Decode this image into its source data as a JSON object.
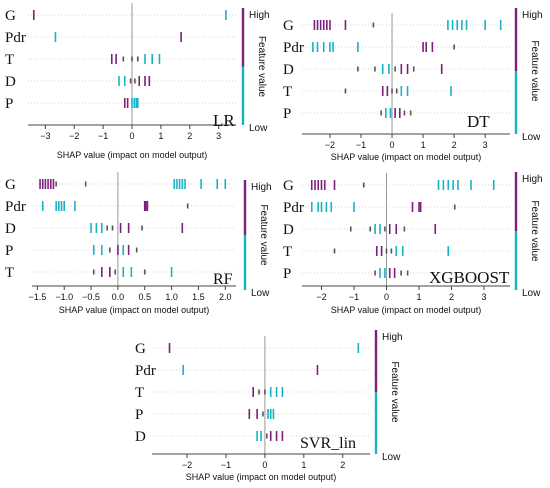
{
  "colors": {
    "high": "#7b1f7a",
    "low": "#17b3c5",
    "mid": "#555555",
    "axis": "#444444",
    "zero_line": "#999999",
    "grid": "#c9c9c9"
  },
  "shared": {
    "xlabel": "SHAP value (impact on model output)",
    "cbar_high": "High",
    "cbar_low": "Low",
    "cbar_label": "Feature value"
  },
  "chart_data": [
    {
      "type": "scatter",
      "title": "LR",
      "features": [
        "G",
        "Pdr",
        "T",
        "D",
        "P"
      ],
      "xlim": [
        -3.6,
        3.6
      ],
      "ticks": [
        -3,
        -2,
        -1,
        0,
        1,
        2,
        3
      ],
      "tick_labels": [
        "−3",
        "−2",
        "−1",
        "0",
        "1",
        "2",
        "3"
      ],
      "points": [
        {
          "f": "G",
          "x": -3.4,
          "c": "high"
        },
        {
          "f": "G",
          "x": 3.25,
          "c": "low"
        },
        {
          "f": "Pdr",
          "x": -2.65,
          "c": "low"
        },
        {
          "f": "Pdr",
          "x": 1.7,
          "c": "high"
        },
        {
          "f": "T",
          "x": -0.7,
          "c": "high"
        },
        {
          "f": "T",
          "x": -0.55,
          "c": "high"
        },
        {
          "f": "T",
          "x": -0.3,
          "c": "mid"
        },
        {
          "f": "T",
          "x": 0.0,
          "c": "mid"
        },
        {
          "f": "T",
          "x": 0.2,
          "c": "mid"
        },
        {
          "f": "T",
          "x": 0.45,
          "c": "low"
        },
        {
          "f": "T",
          "x": 0.7,
          "c": "low"
        },
        {
          "f": "T",
          "x": 0.95,
          "c": "low"
        },
        {
          "f": "D",
          "x": -0.45,
          "c": "low"
        },
        {
          "f": "D",
          "x": -0.25,
          "c": "low"
        },
        {
          "f": "D",
          "x": -0.05,
          "c": "mid"
        },
        {
          "f": "D",
          "x": 0.1,
          "c": "mid"
        },
        {
          "f": "D",
          "x": 0.25,
          "c": "high"
        },
        {
          "f": "D",
          "x": 0.45,
          "c": "high"
        },
        {
          "f": "D",
          "x": 0.6,
          "c": "high"
        },
        {
          "f": "P",
          "x": -0.25,
          "c": "high"
        },
        {
          "f": "P",
          "x": -0.15,
          "c": "high"
        },
        {
          "f": "P",
          "x": 0.0,
          "c": "low"
        },
        {
          "f": "P",
          "x": 0.08,
          "c": "low"
        },
        {
          "f": "P",
          "x": 0.15,
          "c": "low"
        },
        {
          "f": "P",
          "x": 0.2,
          "c": "low"
        }
      ]
    },
    {
      "type": "scatter",
      "title": "DT",
      "features": [
        "G",
        "Pdr",
        "D",
        "T",
        "P"
      ],
      "xlim": [
        -2.9,
        3.8
      ],
      "ticks": [
        -2,
        -1,
        0,
        1,
        2,
        3
      ],
      "tick_labels": [
        "−2",
        "−1",
        "0",
        "1",
        "2",
        "3"
      ],
      "points": [
        {
          "f": "G",
          "x": -2.5,
          "c": "high"
        },
        {
          "f": "G",
          "x": -2.4,
          "c": "high"
        },
        {
          "f": "G",
          "x": -2.3,
          "c": "high"
        },
        {
          "f": "G",
          "x": -2.2,
          "c": "high"
        },
        {
          "f": "G",
          "x": -2.1,
          "c": "high"
        },
        {
          "f": "G",
          "x": -2.0,
          "c": "high"
        },
        {
          "f": "G",
          "x": -1.5,
          "c": "high"
        },
        {
          "f": "G",
          "x": -0.6,
          "c": "mid"
        },
        {
          "f": "G",
          "x": 1.8,
          "c": "low"
        },
        {
          "f": "G",
          "x": 1.95,
          "c": "low"
        },
        {
          "f": "G",
          "x": 2.1,
          "c": "low"
        },
        {
          "f": "G",
          "x": 2.25,
          "c": "low"
        },
        {
          "f": "G",
          "x": 2.4,
          "c": "low"
        },
        {
          "f": "G",
          "x": 3.0,
          "c": "low"
        },
        {
          "f": "G",
          "x": 3.5,
          "c": "low"
        },
        {
          "f": "Pdr",
          "x": -2.55,
          "c": "low"
        },
        {
          "f": "Pdr",
          "x": -2.4,
          "c": "low"
        },
        {
          "f": "Pdr",
          "x": -2.2,
          "c": "low"
        },
        {
          "f": "Pdr",
          "x": -2.0,
          "c": "low"
        },
        {
          "f": "Pdr",
          "x": -1.9,
          "c": "low"
        },
        {
          "f": "Pdr",
          "x": -1.1,
          "c": "low"
        },
        {
          "f": "Pdr",
          "x": 1.0,
          "c": "high"
        },
        {
          "f": "Pdr",
          "x": 1.1,
          "c": "high"
        },
        {
          "f": "Pdr",
          "x": 1.3,
          "c": "high"
        },
        {
          "f": "Pdr",
          "x": 2.0,
          "c": "mid"
        },
        {
          "f": "D",
          "x": -1.1,
          "c": "mid"
        },
        {
          "f": "D",
          "x": -0.55,
          "c": "mid"
        },
        {
          "f": "D",
          "x": -0.3,
          "c": "low"
        },
        {
          "f": "D",
          "x": -0.1,
          "c": "low"
        },
        {
          "f": "D",
          "x": 0.1,
          "c": "mid"
        },
        {
          "f": "D",
          "x": 0.3,
          "c": "high"
        },
        {
          "f": "D",
          "x": 0.5,
          "c": "high"
        },
        {
          "f": "D",
          "x": 0.7,
          "c": "mid"
        },
        {
          "f": "D",
          "x": 1.6,
          "c": "high"
        },
        {
          "f": "T",
          "x": -1.5,
          "c": "mid"
        },
        {
          "f": "T",
          "x": -0.3,
          "c": "high"
        },
        {
          "f": "T",
          "x": -0.15,
          "c": "high"
        },
        {
          "f": "T",
          "x": 0.0,
          "c": "mid"
        },
        {
          "f": "T",
          "x": 0.15,
          "c": "mid"
        },
        {
          "f": "T",
          "x": 0.3,
          "c": "low"
        },
        {
          "f": "T",
          "x": 0.5,
          "c": "low"
        },
        {
          "f": "T",
          "x": 1.9,
          "c": "low"
        },
        {
          "f": "P",
          "x": -0.35,
          "c": "mid"
        },
        {
          "f": "P",
          "x": -0.2,
          "c": "low"
        },
        {
          "f": "P",
          "x": -0.05,
          "c": "low"
        },
        {
          "f": "P",
          "x": 0.1,
          "c": "high"
        },
        {
          "f": "P",
          "x": 0.25,
          "c": "high"
        },
        {
          "f": "P",
          "x": 0.4,
          "c": "mid"
        },
        {
          "f": "P",
          "x": 0.6,
          "c": "mid"
        }
      ]
    },
    {
      "type": "scatter",
      "title": "RF",
      "features": [
        "G",
        "Pdr",
        "D",
        "P",
        "T"
      ],
      "xlim": [
        -1.6,
        2.2
      ],
      "ticks": [
        -1.5,
        -1.0,
        -0.5,
        0.0,
        0.5,
        1.0,
        1.5,
        2.0
      ],
      "tick_labels": [
        "−1.5",
        "−1.0",
        "−0.5",
        "0.0",
        "0.5",
        "1.0",
        "1.5",
        "2.0"
      ],
      "points": [
        {
          "f": "G",
          "x": -1.45,
          "c": "high"
        },
        {
          "f": "G",
          "x": -1.4,
          "c": "high"
        },
        {
          "f": "G",
          "x": -1.35,
          "c": "high"
        },
        {
          "f": "G",
          "x": -1.3,
          "c": "high"
        },
        {
          "f": "G",
          "x": -1.25,
          "c": "high"
        },
        {
          "f": "G",
          "x": -1.2,
          "c": "high"
        },
        {
          "f": "G",
          "x": -1.15,
          "c": "mid"
        },
        {
          "f": "G",
          "x": -0.6,
          "c": "mid"
        },
        {
          "f": "G",
          "x": 1.05,
          "c": "low"
        },
        {
          "f": "G",
          "x": 1.1,
          "c": "low"
        },
        {
          "f": "G",
          "x": 1.15,
          "c": "low"
        },
        {
          "f": "G",
          "x": 1.2,
          "c": "low"
        },
        {
          "f": "G",
          "x": 1.25,
          "c": "low"
        },
        {
          "f": "G",
          "x": 1.55,
          "c": "low"
        },
        {
          "f": "G",
          "x": 1.85,
          "c": "low"
        },
        {
          "f": "G",
          "x": 2.0,
          "c": "low"
        },
        {
          "f": "Pdr",
          "x": -1.4,
          "c": "low"
        },
        {
          "f": "Pdr",
          "x": -1.15,
          "c": "low"
        },
        {
          "f": "Pdr",
          "x": -1.1,
          "c": "low"
        },
        {
          "f": "Pdr",
          "x": -1.05,
          "c": "low"
        },
        {
          "f": "Pdr",
          "x": -1.0,
          "c": "low"
        },
        {
          "f": "Pdr",
          "x": -0.8,
          "c": "low"
        },
        {
          "f": "Pdr",
          "x": 0.5,
          "c": "high"
        },
        {
          "f": "Pdr",
          "x": 0.52,
          "c": "high"
        },
        {
          "f": "Pdr",
          "x": 0.55,
          "c": "high"
        },
        {
          "f": "Pdr",
          "x": 1.3,
          "c": "mid"
        },
        {
          "f": "D",
          "x": -0.5,
          "c": "low"
        },
        {
          "f": "D",
          "x": -0.4,
          "c": "low"
        },
        {
          "f": "D",
          "x": -0.3,
          "c": "low"
        },
        {
          "f": "D",
          "x": -0.2,
          "c": "mid"
        },
        {
          "f": "D",
          "x": -0.1,
          "c": "mid"
        },
        {
          "f": "D",
          "x": 0.05,
          "c": "high"
        },
        {
          "f": "D",
          "x": 0.2,
          "c": "high"
        },
        {
          "f": "D",
          "x": 0.45,
          "c": "mid"
        },
        {
          "f": "D",
          "x": 1.2,
          "c": "high"
        },
        {
          "f": "P",
          "x": -0.45,
          "c": "low"
        },
        {
          "f": "P",
          "x": -0.3,
          "c": "low"
        },
        {
          "f": "P",
          "x": -0.15,
          "c": "mid"
        },
        {
          "f": "P",
          "x": 0.0,
          "c": "high"
        },
        {
          "f": "P",
          "x": 0.1,
          "c": "low"
        },
        {
          "f": "P",
          "x": 0.2,
          "c": "high"
        },
        {
          "f": "P",
          "x": 0.35,
          "c": "mid"
        },
        {
          "f": "T",
          "x": -0.45,
          "c": "mid"
        },
        {
          "f": "T",
          "x": -0.3,
          "c": "high"
        },
        {
          "f": "T",
          "x": -0.15,
          "c": "high"
        },
        {
          "f": "T",
          "x": -0.05,
          "c": "mid"
        },
        {
          "f": "T",
          "x": 0.1,
          "c": "low"
        },
        {
          "f": "T",
          "x": 0.25,
          "c": "low"
        },
        {
          "f": "T",
          "x": 0.5,
          "c": "mid"
        },
        {
          "f": "T",
          "x": 1.0,
          "c": "low"
        }
      ]
    },
    {
      "type": "scatter",
      "title": "XGBOOST",
      "features": [
        "G",
        "Pdr",
        "D",
        "T",
        "P"
      ],
      "xlim": [
        -2.6,
        3.8
      ],
      "ticks": [
        -2,
        -1,
        0,
        1,
        2,
        3
      ],
      "tick_labels": [
        "−2",
        "−1",
        "0",
        "1",
        "2",
        "3"
      ],
      "points": [
        {
          "f": "G",
          "x": -2.3,
          "c": "high"
        },
        {
          "f": "G",
          "x": -2.2,
          "c": "high"
        },
        {
          "f": "G",
          "x": -2.1,
          "c": "high"
        },
        {
          "f": "G",
          "x": -2.0,
          "c": "high"
        },
        {
          "f": "G",
          "x": -1.9,
          "c": "high"
        },
        {
          "f": "G",
          "x": -1.6,
          "c": "high"
        },
        {
          "f": "G",
          "x": -0.7,
          "c": "mid"
        },
        {
          "f": "G",
          "x": 1.6,
          "c": "low"
        },
        {
          "f": "G",
          "x": 1.75,
          "c": "low"
        },
        {
          "f": "G",
          "x": 1.9,
          "c": "low"
        },
        {
          "f": "G",
          "x": 2.05,
          "c": "low"
        },
        {
          "f": "G",
          "x": 2.2,
          "c": "low"
        },
        {
          "f": "G",
          "x": 2.6,
          "c": "low"
        },
        {
          "f": "G",
          "x": 3.3,
          "c": "low"
        },
        {
          "f": "Pdr",
          "x": -2.3,
          "c": "low"
        },
        {
          "f": "Pdr",
          "x": -2.1,
          "c": "low"
        },
        {
          "f": "Pdr",
          "x": -2.0,
          "c": "low"
        },
        {
          "f": "Pdr",
          "x": -1.85,
          "c": "low"
        },
        {
          "f": "Pdr",
          "x": -1.7,
          "c": "low"
        },
        {
          "f": "Pdr",
          "x": -1.0,
          "c": "low"
        },
        {
          "f": "Pdr",
          "x": 0.8,
          "c": "high"
        },
        {
          "f": "Pdr",
          "x": 1.0,
          "c": "high"
        },
        {
          "f": "Pdr",
          "x": 1.05,
          "c": "high"
        },
        {
          "f": "Pdr",
          "x": 2.1,
          "c": "mid"
        },
        {
          "f": "D",
          "x": -1.1,
          "c": "mid"
        },
        {
          "f": "D",
          "x": -0.5,
          "c": "mid"
        },
        {
          "f": "D",
          "x": -0.35,
          "c": "low"
        },
        {
          "f": "D",
          "x": -0.2,
          "c": "low"
        },
        {
          "f": "D",
          "x": -0.05,
          "c": "mid"
        },
        {
          "f": "D",
          "x": 0.1,
          "c": "high"
        },
        {
          "f": "D",
          "x": 0.3,
          "c": "high"
        },
        {
          "f": "D",
          "x": 0.55,
          "c": "mid"
        },
        {
          "f": "D",
          "x": 1.5,
          "c": "high"
        },
        {
          "f": "T",
          "x": -1.6,
          "c": "mid"
        },
        {
          "f": "T",
          "x": -0.3,
          "c": "high"
        },
        {
          "f": "T",
          "x": -0.15,
          "c": "high"
        },
        {
          "f": "T",
          "x": 0.0,
          "c": "mid"
        },
        {
          "f": "T",
          "x": 0.15,
          "c": "mid"
        },
        {
          "f": "T",
          "x": 0.3,
          "c": "low"
        },
        {
          "f": "T",
          "x": 0.5,
          "c": "low"
        },
        {
          "f": "T",
          "x": 1.9,
          "c": "low"
        },
        {
          "f": "P",
          "x": -0.35,
          "c": "mid"
        },
        {
          "f": "P",
          "x": -0.2,
          "c": "low"
        },
        {
          "f": "P",
          "x": -0.05,
          "c": "low"
        },
        {
          "f": "P",
          "x": 0.1,
          "c": "high"
        },
        {
          "f": "P",
          "x": 0.25,
          "c": "high"
        },
        {
          "f": "P",
          "x": 0.45,
          "c": "mid"
        },
        {
          "f": "P",
          "x": 0.65,
          "c": "mid"
        }
      ]
    },
    {
      "type": "scatter",
      "title": "SVR_lin",
      "features": [
        "G",
        "Pdr",
        "T",
        "P",
        "D"
      ],
      "xlim": [
        -2.9,
        2.7
      ],
      "ticks": [
        -2,
        -1,
        0,
        1,
        2
      ],
      "tick_labels": [
        "−2",
        "−1",
        "0",
        "1",
        "2"
      ],
      "points": [
        {
          "f": "G",
          "x": -2.45,
          "c": "high"
        },
        {
          "f": "G",
          "x": 2.4,
          "c": "low"
        },
        {
          "f": "Pdr",
          "x": -2.1,
          "c": "low"
        },
        {
          "f": "Pdr",
          "x": 1.35,
          "c": "high"
        },
        {
          "f": "T",
          "x": -0.3,
          "c": "high"
        },
        {
          "f": "T",
          "x": -0.15,
          "c": "mid"
        },
        {
          "f": "T",
          "x": 0.0,
          "c": "mid"
        },
        {
          "f": "T",
          "x": 0.15,
          "c": "low"
        },
        {
          "f": "T",
          "x": 0.3,
          "c": "low"
        },
        {
          "f": "T",
          "x": 0.45,
          "c": "low"
        },
        {
          "f": "P",
          "x": -0.4,
          "c": "high"
        },
        {
          "f": "P",
          "x": -0.2,
          "c": "high"
        },
        {
          "f": "P",
          "x": -0.05,
          "c": "mid"
        },
        {
          "f": "P",
          "x": 0.08,
          "c": "low"
        },
        {
          "f": "P",
          "x": 0.15,
          "c": "low"
        },
        {
          "f": "P",
          "x": 0.22,
          "c": "low"
        },
        {
          "f": "D",
          "x": -0.2,
          "c": "low"
        },
        {
          "f": "D",
          "x": -0.1,
          "c": "low"
        },
        {
          "f": "D",
          "x": 0.05,
          "c": "mid"
        },
        {
          "f": "D",
          "x": 0.15,
          "c": "high"
        },
        {
          "f": "D",
          "x": 0.3,
          "c": "high"
        },
        {
          "f": "D",
          "x": 0.45,
          "c": "high"
        }
      ]
    }
  ]
}
